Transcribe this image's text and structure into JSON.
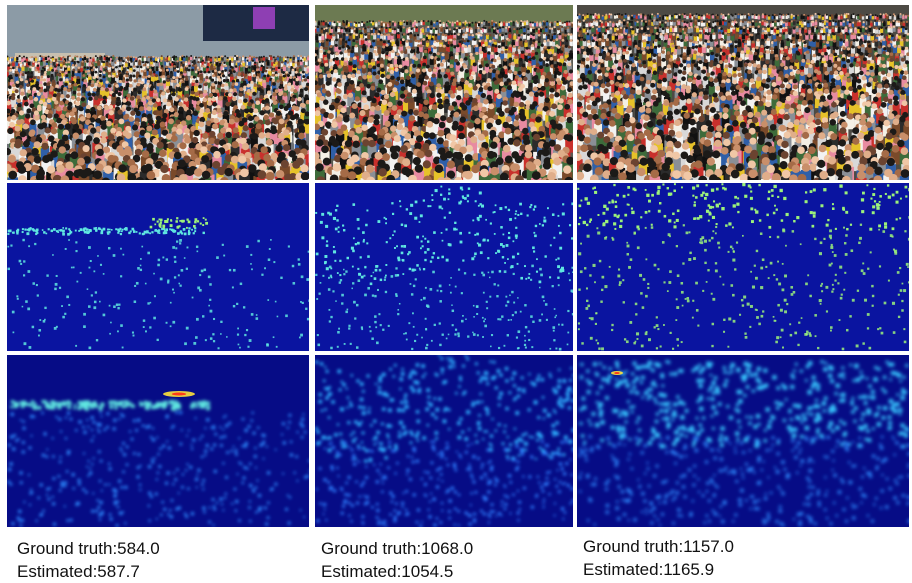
{
  "colors": {
    "density_background": "#0a14a0",
    "density_background_dark": "#060c86",
    "dot_cyan": "#5fe6e0",
    "dot_green": "#9cf27a",
    "hot_red": "#ff3b1a",
    "hot_yellow": "#ffe23a"
  },
  "columns": [
    {
      "id": "scene-1",
      "ground_truth_label": "Ground truth:584.0",
      "estimated_label": "Estimated:587.7",
      "ground_truth": 584.0,
      "estimated": 587.7,
      "icon": "crowd-photo"
    },
    {
      "id": "scene-2",
      "ground_truth_label": "Ground truth:1068.0",
      "estimated_label": "Estimated:1054.5",
      "ground_truth": 1068.0,
      "estimated": 1054.5,
      "icon": "crowd-photo"
    },
    {
      "id": "scene-3",
      "ground_truth_label": "Ground truth:1157.0",
      "estimated_label": "Estimated:1165.9",
      "ground_truth": 1157.0,
      "estimated": 1165.9,
      "icon": "crowd-photo"
    }
  ]
}
